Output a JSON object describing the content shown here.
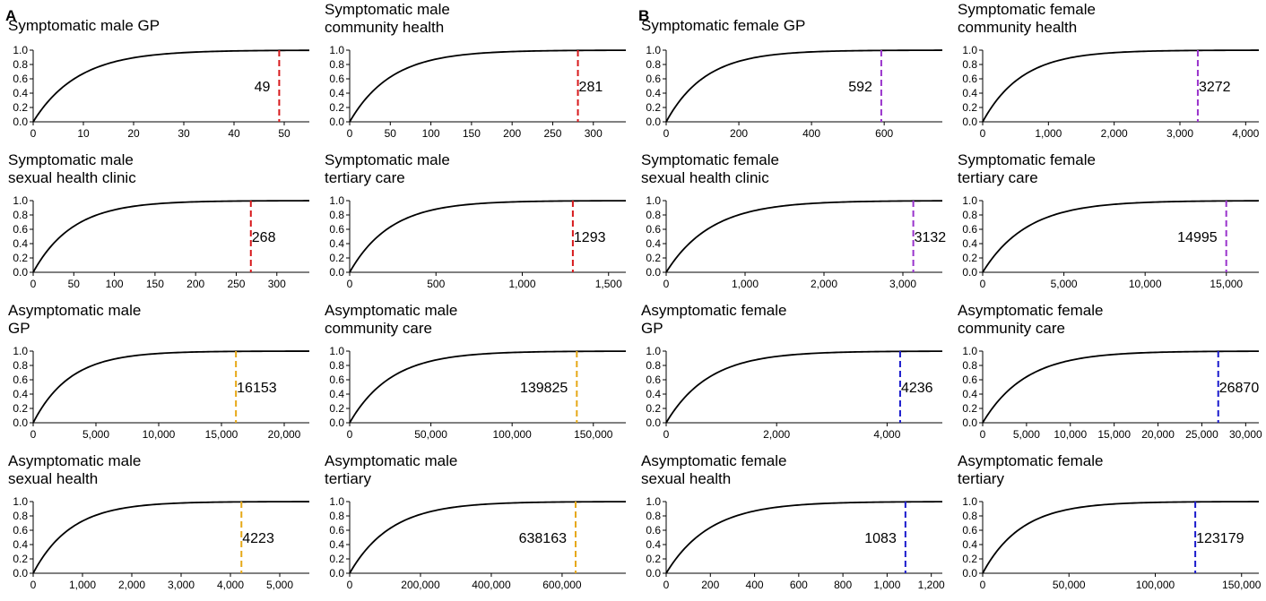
{
  "panel_labels": [
    "A",
    "B"
  ],
  "colors": {
    "male_symptomatic": "#d7191c",
    "female_symptomatic": "#9933cc",
    "male_asymptomatic": "#e6a817",
    "female_asymptomatic": "#1a1acc"
  },
  "chart_data": [
    {
      "type": "line",
      "title": [
        "Symptomatic male GP"
      ],
      "xmax": 55,
      "xticks": [
        0,
        10,
        20,
        30,
        40,
        50
      ],
      "xtick_labels": [
        "0",
        "10",
        "20",
        "30",
        "40",
        "50"
      ],
      "yticks": [
        0,
        0.2,
        0.4,
        0.6,
        0.8,
        1.0
      ],
      "ytick_labels": [
        "0.0",
        "0.2",
        "0.4",
        "0.6",
        "0.8",
        "1.0"
      ],
      "marker_value": 49,
      "marker_label": "49",
      "marker_color": "#d7191c",
      "label_side": "left"
    },
    {
      "type": "line",
      "title": [
        "Symptomatic male",
        " community health"
      ],
      "xmax": 340,
      "xticks": [
        0,
        50,
        100,
        150,
        200,
        250,
        300
      ],
      "xtick_labels": [
        "0",
        "50",
        "100",
        "150",
        "200",
        "250",
        "300"
      ],
      "yticks": [
        0,
        0.2,
        0.4,
        0.6,
        0.8,
        1.0
      ],
      "ytick_labels": [
        "0.0",
        "0.2",
        "0.4",
        "0.6",
        "0.8",
        "1.0"
      ],
      "marker_value": 281,
      "marker_label": "281",
      "marker_color": "#d7191c",
      "label_side": "right"
    },
    {
      "type": "line",
      "title": [
        "Symptomatic female GP"
      ],
      "xmax": 760,
      "xticks": [
        0,
        200,
        400,
        600
      ],
      "xtick_labels": [
        "0",
        "200",
        "400",
        "600"
      ],
      "yticks": [
        0,
        0.2,
        0.4,
        0.6,
        0.8,
        1.0
      ],
      "ytick_labels": [
        "0.0",
        "0.2",
        "0.4",
        "0.6",
        "0.8",
        "1.0"
      ],
      "marker_value": 592,
      "marker_label": "592",
      "marker_color": "#9933cc",
      "label_side": "left"
    },
    {
      "type": "line",
      "title": [
        "Symptomatic female",
        " community health"
      ],
      "xmax": 4200,
      "xticks": [
        0,
        1000,
        2000,
        3000,
        4000
      ],
      "xtick_labels": [
        "0",
        "1,000",
        "2,000",
        "3,000",
        "4,000"
      ],
      "yticks": [
        0,
        0.2,
        0.4,
        0.6,
        0.8,
        1.0
      ],
      "ytick_labels": [
        "0.0",
        "0.2",
        "0.4",
        "0.6",
        "0.8",
        "1.0"
      ],
      "marker_value": 3272,
      "marker_label": "3272",
      "marker_color": "#9933cc",
      "label_side": "right"
    },
    {
      "type": "line",
      "title": [
        "Symptomatic male",
        " sexual health clinic"
      ],
      "xmax": 340,
      "xticks": [
        0,
        50,
        100,
        150,
        200,
        250,
        300
      ],
      "xtick_labels": [
        "0",
        "50",
        "100",
        "150",
        "200",
        "250",
        "300"
      ],
      "yticks": [
        0,
        0.2,
        0.4,
        0.6,
        0.8,
        1.0
      ],
      "ytick_labels": [
        "0.0",
        "0.2",
        "0.4",
        "0.6",
        "0.8",
        "1.0"
      ],
      "marker_value": 268,
      "marker_label": "268",
      "marker_color": "#d7191c",
      "label_side": "right"
    },
    {
      "type": "line",
      "title": [
        "Symptomatic male",
        " tertiary care"
      ],
      "xmax": 1600,
      "xticks": [
        0,
        500,
        1000,
        1500
      ],
      "xtick_labels": [
        "0",
        "500",
        "1,000",
        "1,500"
      ],
      "yticks": [
        0,
        0.2,
        0.4,
        0.6,
        0.8,
        1.0
      ],
      "ytick_labels": [
        "0.0",
        "0.2",
        "0.4",
        "0.6",
        "0.8",
        "1.0"
      ],
      "marker_value": 1293,
      "marker_label": "1293",
      "marker_color": "#d7191c",
      "label_side": "right"
    },
    {
      "type": "line",
      "title": [
        "Symptomatic female",
        " sexual health clinic"
      ],
      "xmax": 3500,
      "xticks": [
        0,
        1000,
        2000,
        3000
      ],
      "xtick_labels": [
        "0",
        "1,000",
        "2,000",
        "3,000"
      ],
      "yticks": [
        0,
        0.2,
        0.4,
        0.6,
        0.8,
        1.0
      ],
      "ytick_labels": [
        "0.0",
        "0.2",
        "0.4",
        "0.6",
        "0.8",
        "1.0"
      ],
      "marker_value": 3132,
      "marker_label": "3132",
      "marker_color": "#9933cc",
      "label_side": "right"
    },
    {
      "type": "line",
      "title": [
        "Symptomatic female",
        " tertiary care"
      ],
      "xmax": 17000,
      "xticks": [
        0,
        5000,
        10000,
        15000
      ],
      "xtick_labels": [
        "0",
        "5,000",
        "10,000",
        "15,000"
      ],
      "yticks": [
        0,
        0.2,
        0.4,
        0.6,
        0.8,
        1.0
      ],
      "ytick_labels": [
        "0.0",
        "0.2",
        "0.4",
        "0.6",
        "0.8",
        "1.0"
      ],
      "marker_value": 14995,
      "marker_label": "14995",
      "marker_color": "#9933cc",
      "label_side": "left"
    },
    {
      "type": "line",
      "title": [
        "Asymptomatic male",
        " GP"
      ],
      "xmax": 22000,
      "xticks": [
        0,
        5000,
        10000,
        15000,
        20000
      ],
      "xtick_labels": [
        "0",
        "5,000",
        "10,000",
        "15,000",
        "20,000"
      ],
      "yticks": [
        0,
        0.2,
        0.4,
        0.6,
        0.8,
        1.0
      ],
      "ytick_labels": [
        "0.0",
        "0.2",
        "0.4",
        "0.6",
        "0.8",
        "1.0"
      ],
      "marker_value": 16153,
      "marker_label": "16153",
      "marker_color": "#e6a817",
      "label_side": "right"
    },
    {
      "type": "line",
      "title": [
        "Asymptomatic male",
        "community care"
      ],
      "xmax": 170000,
      "xticks": [
        0,
        50000,
        100000,
        150000
      ],
      "xtick_labels": [
        "0",
        "50,000",
        "100,000",
        "150,000"
      ],
      "yticks": [
        0,
        0.2,
        0.4,
        0.6,
        0.8,
        1.0
      ],
      "ytick_labels": [
        "0.0",
        "0.2",
        "0.4",
        "0.6",
        "0.8",
        "1.0"
      ],
      "marker_value": 139825,
      "marker_label": "139825",
      "marker_color": "#e6a817",
      "label_side": "left"
    },
    {
      "type": "line",
      "title": [
        "Asymptomatic female",
        "GP"
      ],
      "xmax": 5000,
      "xticks": [
        0,
        2000,
        4000
      ],
      "xtick_labels": [
        "0",
        "2,000",
        "4,000"
      ],
      "yticks": [
        0,
        0.2,
        0.4,
        0.6,
        0.8,
        1.0
      ],
      "ytick_labels": [
        "0.0",
        "0.2",
        "0.4",
        "0.6",
        "0.8",
        "1.0"
      ],
      "marker_value": 4236,
      "marker_label": "4236",
      "marker_color": "#1a1acc",
      "label_side": "right"
    },
    {
      "type": "line",
      "title": [
        "Asymptomatic female",
        " community care"
      ],
      "xmax": 31500,
      "xticks": [
        0,
        5000,
        10000,
        15000,
        20000,
        25000,
        30000
      ],
      "xtick_labels": [
        "0",
        "5,000",
        "10,000",
        "15,000",
        "20,000",
        "25,000",
        "30,000"
      ],
      "yticks": [
        0,
        0.2,
        0.4,
        0.6,
        0.8,
        1.0
      ],
      "ytick_labels": [
        "0.0",
        "0.2",
        "0.4",
        "0.6",
        "0.8",
        "1.0"
      ],
      "marker_value": 26870,
      "marker_label": "26870",
      "marker_color": "#1a1acc",
      "label_side": "right"
    },
    {
      "type": "line",
      "title": [
        "Asymptomatic male",
        "sexual health"
      ],
      "xmax": 5600,
      "xticks": [
        0,
        1000,
        2000,
        3000,
        4000,
        5000
      ],
      "xtick_labels": [
        "0",
        "1,000",
        "2,000",
        "3,000",
        "4,000",
        "5,000"
      ],
      "yticks": [
        0,
        0.2,
        0.4,
        0.6,
        0.8,
        1.0
      ],
      "ytick_labels": [
        "0.0",
        "0.2",
        "0.4",
        "0.6",
        "0.8",
        "1.0"
      ],
      "marker_value": 4223,
      "marker_label": "4223",
      "marker_color": "#e6a817",
      "label_side": "right"
    },
    {
      "type": "line",
      "title": [
        "Asymptomatic male",
        " tertiary"
      ],
      "xmax": 780000,
      "xticks": [
        0,
        200000,
        400000,
        600000
      ],
      "xtick_labels": [
        "0",
        "200,000",
        "400,000",
        "600,000"
      ],
      "yticks": [
        0,
        0.2,
        0.4,
        0.6,
        0.8,
        1.0
      ],
      "ytick_labels": [
        "0.0",
        "0.2",
        "0.4",
        "0.6",
        "0.8",
        "1.0"
      ],
      "marker_value": 638163,
      "marker_label": "638163",
      "marker_color": "#e6a817",
      "label_side": "left"
    },
    {
      "type": "line",
      "title": [
        "Asymptomatic female",
        " sexual health"
      ],
      "xmax": 1250,
      "xticks": [
        0,
        200,
        400,
        600,
        800,
        1000,
        1200
      ],
      "xtick_labels": [
        "0",
        "200",
        "400",
        "600",
        "800",
        "1,000",
        "1,200"
      ],
      "yticks": [
        0,
        0.2,
        0.4,
        0.6,
        0.8,
        1.0
      ],
      "ytick_labels": [
        "0.0",
        "0.2",
        "0.4",
        "0.6",
        "0.8",
        "1.0"
      ],
      "marker_value": 1083,
      "marker_label": "1083",
      "marker_color": "#1a1acc",
      "label_side": "left"
    },
    {
      "type": "line",
      "title": [
        "Asymptomatic female",
        "tertiary"
      ],
      "xmax": 160000,
      "xticks": [
        0,
        50000,
        100000,
        150000
      ],
      "xtick_labels": [
        "0",
        "50,000",
        "100,000",
        "150,000"
      ],
      "yticks": [
        0,
        0.2,
        0.4,
        0.6,
        0.8,
        1.0
      ],
      "ytick_labels": [
        "0.0",
        "0.2",
        "0.4",
        "0.6",
        "0.8",
        "1.0"
      ],
      "marker_value": 123179,
      "marker_label": "123179",
      "marker_color": "#1a1acc",
      "label_side": "right"
    }
  ]
}
